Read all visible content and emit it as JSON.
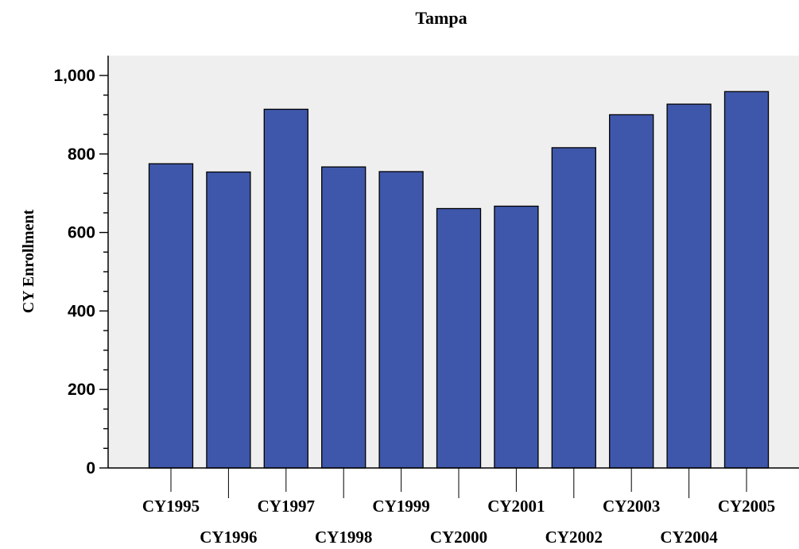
{
  "chart_data": {
    "type": "bar",
    "title": "Tampa",
    "xlabel": "",
    "ylabel": "CY Enrollment",
    "ylim": [
      0,
      1000
    ],
    "yticks": [
      0,
      200,
      400,
      600,
      800,
      1000
    ],
    "ytick_labels": [
      "0",
      "200",
      "400",
      "600",
      "800",
      "1,000"
    ],
    "categories": [
      "CY1995",
      "CY1996",
      "CY1997",
      "CY1998",
      "CY1999",
      "CY2000",
      "CY2001",
      "CY2002",
      "CY2003",
      "CY2004",
      "CY2005"
    ],
    "values": [
      775,
      754,
      914,
      767,
      755,
      661,
      667,
      816,
      900,
      927,
      959
    ],
    "grid": false,
    "colors": {
      "bar": "#3f57aa",
      "bar_edge": "#000000",
      "plot_background": "#efefef"
    }
  }
}
